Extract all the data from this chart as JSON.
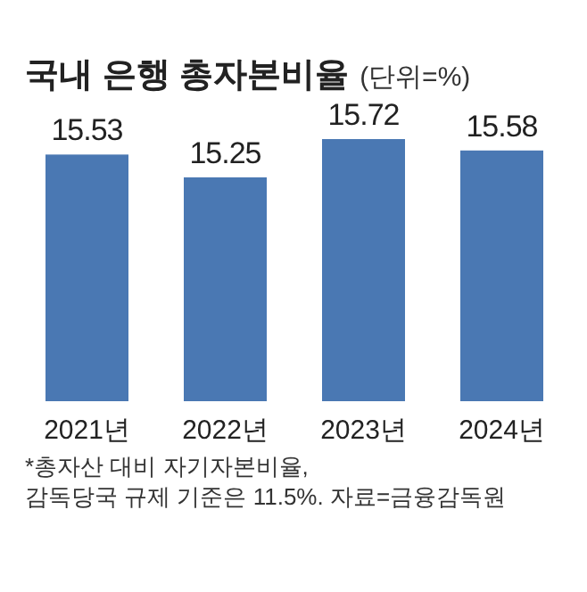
{
  "chart_data": {
    "type": "bar",
    "title": "국내 은행 총자본비율",
    "subtitle": "(단위=%)",
    "categories": [
      "2021년",
      "2022년",
      "2023년",
      "2024년"
    ],
    "values": [
      15.53,
      15.25,
      15.72,
      15.58
    ],
    "color": "#4a78b3",
    "ylim": [
      12.5,
      15.72
    ],
    "tick_labels": "x",
    "data_labels": true,
    "annotations": [
      "*총자산 대비 자기자본비율,",
      "감독당국 규제 기준은 11.5%. 자료=금융감독원"
    ]
  }
}
